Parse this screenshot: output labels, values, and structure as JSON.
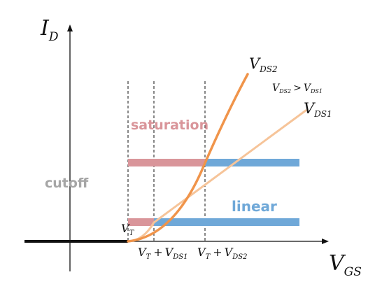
{
  "axes": {
    "y": {
      "symbol": "I",
      "subscript": "D"
    },
    "x": {
      "symbol": "V",
      "subscript": "GS"
    }
  },
  "regions": {
    "cutoff": "cutoff",
    "saturation": "saturation",
    "linear": "linear"
  },
  "curves": {
    "vds2": {
      "symbol": "V",
      "subscript": "DS2"
    },
    "vds1": {
      "symbol": "V",
      "subscript": "DS1"
    },
    "inequality": {
      "left_symbol": "V",
      "left_sub": "DS2",
      "op": ">",
      "right_symbol": "V",
      "right_sub": "DS1"
    }
  },
  "ticks": {
    "vt": {
      "symbol": "V",
      "subscript": "T"
    },
    "t1": {
      "a": "V",
      "a_sub": "T",
      "op": "+",
      "b": "V",
      "b_sub": "DS1"
    },
    "t2": {
      "a": "V",
      "a_sub": "T",
      "op": "+",
      "b": "V",
      "b_sub": "DS2"
    }
  },
  "colors": {
    "axis": "#111111",
    "saturation_band": "#d9959a",
    "linear_band": "#6fa8d8",
    "vds2_curve": "#f0944a",
    "vds1_curve": "#f6c499",
    "cutoff_text": "#a6a6a6",
    "saturation_text": "#d9959a",
    "linear_text": "#6fa8d8"
  }
}
